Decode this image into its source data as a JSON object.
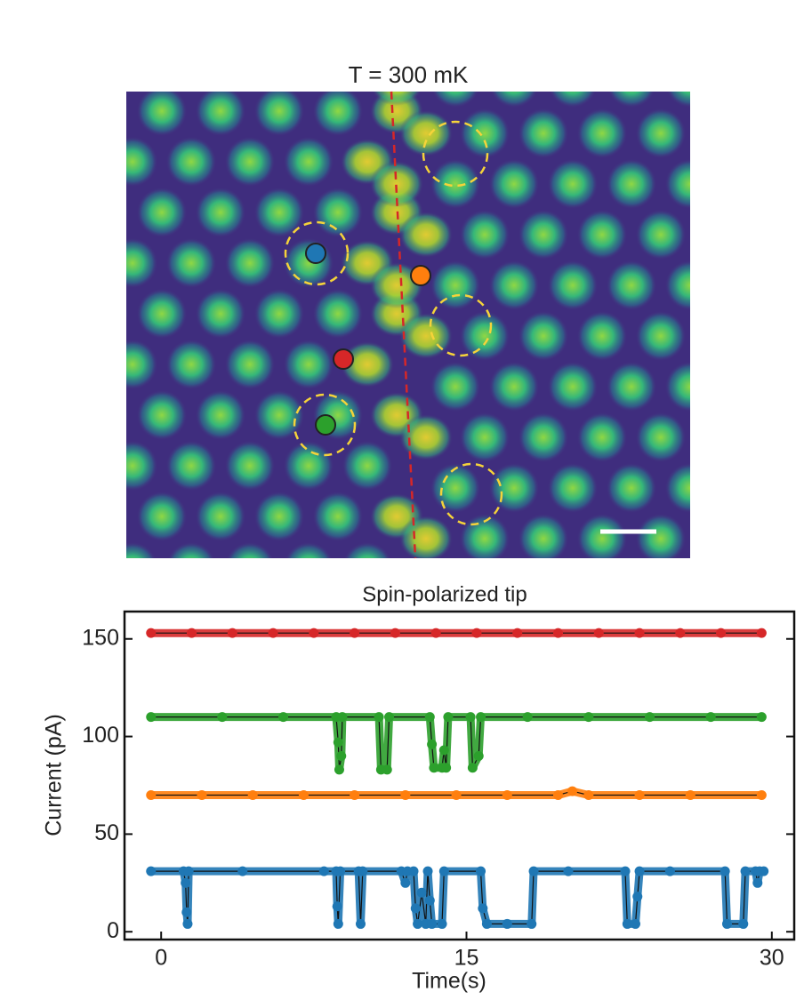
{
  "image": {
    "title": "T =  300 mK"
  },
  "chart_data": {
    "type": "line",
    "title": "Spin-polarized tip",
    "x_label": "Time(s)",
    "y_label": "Current (pA)",
    "xlim": [
      -1.8,
      31.1
    ],
    "ylim": [
      -4,
      164
    ],
    "xticks": [
      0,
      15,
      30
    ],
    "yticks": [
      0,
      50,
      100,
      150
    ],
    "series": [
      {
        "color": "#d62728",
        "x": [
          -0.5,
          1.5,
          3.5,
          5.5,
          7.5,
          9.5,
          11.5,
          13.5,
          15.5,
          17.5,
          19.5,
          21.5,
          23.5,
          25.5,
          27.5,
          29.5
        ],
        "values": [
          153,
          153,
          153,
          153,
          153,
          153,
          153,
          153,
          153,
          153,
          153,
          153,
          153,
          153,
          153,
          153
        ]
      },
      {
        "color": "#2ca02c",
        "x": [
          -0.5,
          3,
          6,
          8.6,
          8.7,
          8.75,
          8.85,
          8.9,
          10.7,
          10.8,
          11.1,
          11.2,
          13.2,
          13.3,
          13.4,
          13.8,
          13.9,
          14.0,
          14.1,
          15.2,
          15.3,
          15.6,
          15.7,
          18,
          21,
          24,
          27,
          29.5
        ],
        "values": [
          110,
          110,
          110,
          110,
          97,
          83,
          90,
          110,
          110,
          83,
          83,
          110,
          110,
          96,
          84,
          84,
          93,
          84,
          110,
          110,
          84,
          90,
          110,
          110,
          110,
          110,
          110,
          110
        ]
      },
      {
        "color": "#ff7f0e",
        "x": [
          -0.5,
          2,
          4.5,
          7,
          9.5,
          12,
          14.5,
          17,
          19.5,
          20.2,
          21,
          23.5,
          26,
          29.5
        ],
        "values": [
          70,
          70,
          70,
          70,
          70,
          70,
          70,
          70,
          70,
          72,
          70,
          70,
          70,
          70
        ]
      },
      {
        "color": "#1f77b4",
        "x": [
          -0.5,
          1.1,
          1.2,
          1.25,
          1.3,
          1.35,
          4,
          8,
          8.6,
          8.65,
          8.7,
          8.8,
          9.7,
          9.8,
          9.9,
          11.8,
          12,
          12.1,
          12.4,
          12.5,
          12.6,
          12.8,
          13.0,
          13.1,
          13.2,
          13.3,
          13.8,
          13.9,
          15.7,
          15.8,
          16,
          17,
          18.2,
          18.3,
          20,
          22.8,
          22.9,
          23.3,
          23.4,
          23.5,
          25,
          27.7,
          27.8,
          28.6,
          28.7,
          29.2,
          29.3,
          29.4,
          29.6
        ],
        "values": [
          31,
          31,
          25,
          10,
          4,
          31,
          31,
          31,
          31,
          13,
          4,
          31,
          31,
          4,
          31,
          31,
          25,
          31,
          31,
          12,
          4,
          20,
          4,
          31,
          16,
          4,
          4,
          31,
          31,
          12,
          4,
          4,
          4,
          31,
          31,
          31,
          4,
          4,
          18,
          31,
          31,
          31,
          4,
          4,
          31,
          31,
          25,
          31,
          31
        ]
      }
    ]
  }
}
